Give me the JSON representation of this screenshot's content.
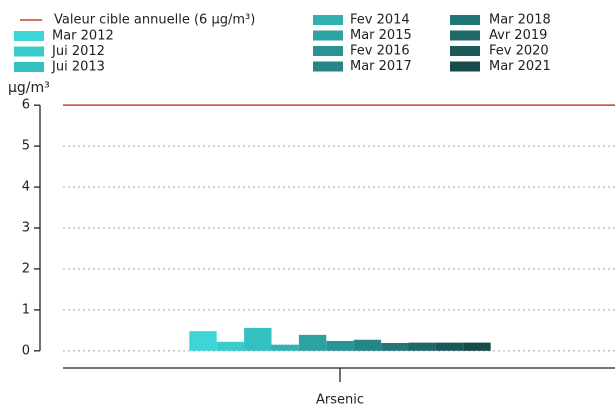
{
  "chart_data": {
    "type": "bar",
    "categories": [
      "Arsenic"
    ],
    "ylabel": "µg/m³",
    "ylim": [
      -0.42,
      6.2
    ],
    "yticks": [
      0,
      1,
      2,
      3,
      4,
      5,
      6
    ],
    "grid": true,
    "threshold": {
      "name": "Valeur cible annuelle (6 µg/m³)",
      "value": 6,
      "color": "#c8412c"
    },
    "series": [
      {
        "name": "Mar 2012",
        "color": "#3dd5d5",
        "values": [
          0.48
        ]
      },
      {
        "name": "Jui 2012",
        "color": "#38cccc",
        "values": [
          0.22
        ]
      },
      {
        "name": "Jui 2013",
        "color": "#34bfc0",
        "values": [
          0.56
        ]
      },
      {
        "name": "Fev 2014",
        "color": "#31b1b2",
        "values": [
          0.15
        ]
      },
      {
        "name": "Mar 2015",
        "color": "#2da2a3",
        "values": [
          0.39
        ]
      },
      {
        "name": "Fev 2016",
        "color": "#2a9495",
        "values": [
          0.24
        ]
      },
      {
        "name": "Mar 2017",
        "color": "#268587",
        "values": [
          0.27
        ]
      },
      {
        "name": "Mar 2018",
        "color": "#237677",
        "values": [
          0.19
        ]
      },
      {
        "name": "Avr 2019",
        "color": "#1f6768",
        "values": [
          0.2
        ]
      },
      {
        "name": "Fev 2020",
        "color": "#1c5859",
        "values": [
          0.2
        ]
      },
      {
        "name": "Mar 2021",
        "color": "#184a4b",
        "values": [
          0.2
        ]
      }
    ]
  }
}
